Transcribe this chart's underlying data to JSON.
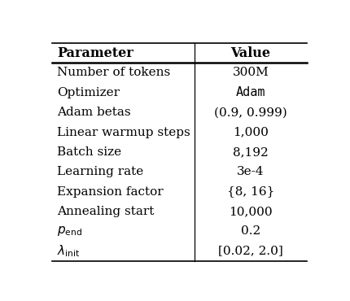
{
  "headers": [
    "Parameter",
    "Value"
  ],
  "rows": [
    [
      "Number of tokens",
      "300M"
    ],
    [
      "Optimizer",
      "Adam"
    ],
    [
      "Adam betas",
      "(0.9, 0.999)"
    ],
    [
      "Linear warmup steps",
      "1,000"
    ],
    [
      "Batch size",
      "8,192"
    ],
    [
      "Learning rate",
      "3e-4"
    ],
    [
      "Expansion factor",
      "{8, 16}"
    ],
    [
      "Annealing start",
      "10,000"
    ],
    [
      "$p_{\\mathrm{end}}$",
      "0.2"
    ],
    [
      "$\\lambda_{\\mathrm{init}}$",
      "[0.02, 2.0]"
    ]
  ],
  "col_split": 0.555,
  "header_fontsize": 11.5,
  "row_fontsize": 11.0,
  "monospace_rows": [
    1
  ],
  "background_color": "#ffffff",
  "line_color": "#000000"
}
